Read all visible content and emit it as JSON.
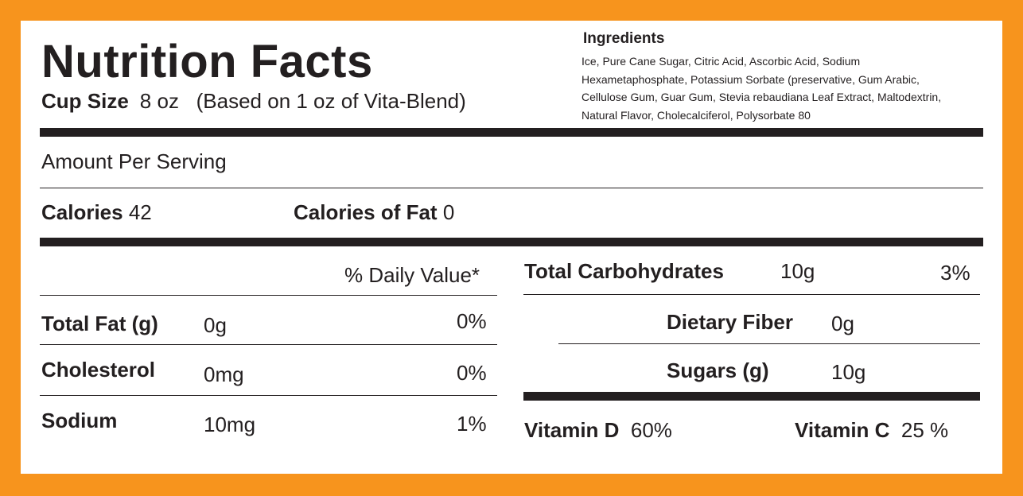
{
  "title": "Nutrition Facts",
  "cup_size": {
    "label": "Cup Size",
    "value": "8 oz",
    "note": "(Based on 1 oz of Vita-Blend)"
  },
  "ingredients": {
    "title": "Ingredients",
    "text": "Ice, Pure Cane Sugar, Citric Acid, Ascorbic Acid, Sodium Hexametaphosphate, Potassium Sorbate (preservative, Gum Arabic, Cellulose Gum, Guar Gum, Stevia rebaudiana Leaf Extract, Maltodextrin, Natural Flavor, Cholecalciferol, Polysorbate 80"
  },
  "amount_per_serving": "Amount Per Serving",
  "calories": {
    "label": "Calories",
    "value": "42"
  },
  "calories_fat": {
    "label": "Calories of Fat",
    "value": "0"
  },
  "daily_value_header": "% Daily Value*",
  "left_nutrients": [
    {
      "label": "Total Fat (g)",
      "amount": "0g",
      "dv": "0%"
    },
    {
      "label": "Cholesterol",
      "amount": "0mg",
      "dv": "0%"
    },
    {
      "label": "Sodium",
      "amount": "10mg",
      "dv": "1%"
    }
  ],
  "carbs": {
    "label": "Total Carbohydrates",
    "amount": "10g",
    "dv": "3%"
  },
  "carb_sub": [
    {
      "label": "Dietary Fiber",
      "amount": "0g"
    },
    {
      "label": "Sugars (g)",
      "amount": "10g"
    }
  ],
  "vitamins": [
    {
      "label": "Vitamin D",
      "value": "60%"
    },
    {
      "label": "Vitamin C",
      "value": "25 %"
    }
  ],
  "colors": {
    "border": "#f7941d",
    "text": "#231f20",
    "background": "#ffffff"
  }
}
